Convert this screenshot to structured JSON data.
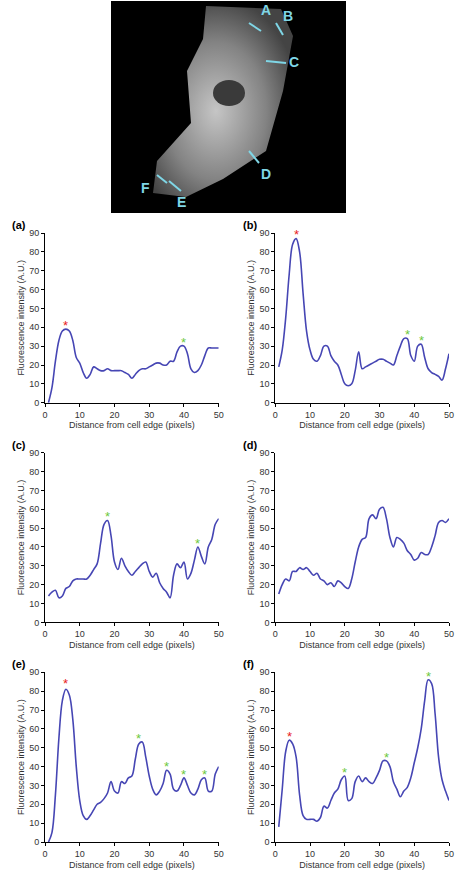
{
  "image": {
    "labels": [
      "A",
      "B",
      "C",
      "D",
      "E",
      "F"
    ]
  },
  "chart_data": [
    {
      "type": "line",
      "panel": "(a)",
      "xlabel": "Distance from cell edge (pixels)",
      "ylabel": "Fluorescence intensity (A.U.)",
      "x": [
        1,
        2,
        3,
        4,
        5,
        6,
        7,
        8,
        9,
        10,
        11,
        12,
        13,
        14,
        15,
        16,
        17,
        18,
        19,
        20,
        21,
        22,
        23,
        24,
        25,
        26,
        27,
        28,
        29,
        30,
        31,
        32,
        33,
        34,
        35,
        36,
        37,
        38,
        39,
        40,
        41,
        42,
        43,
        44,
        45,
        46,
        47,
        48,
        49,
        50
      ],
      "values": [
        0,
        8,
        22,
        33,
        38,
        39,
        38,
        33,
        24,
        21,
        16,
        13,
        15,
        19,
        18,
        17,
        17,
        18,
        17,
        17,
        17,
        17,
        16,
        15,
        13,
        15,
        17,
        18,
        18,
        19,
        20,
        21,
        21,
        20,
        20,
        22,
        22,
        27,
        30,
        30,
        26,
        18,
        16,
        17,
        20,
        25,
        29,
        29,
        29,
        29
      ],
      "color": "#4646b4",
      "line_style": "solid",
      "grid": false,
      "xlim": [
        0,
        50
      ],
      "xticks": [
        0,
        10,
        20,
        30,
        40,
        50
      ],
      "ylim": [
        0,
        90
      ],
      "yticks": [
        0,
        10,
        20,
        30,
        40,
        50,
        60,
        70,
        80,
        90
      ],
      "annotations": [
        {
          "text": "*",
          "x": 6,
          "y": 41,
          "color": "#e8201c"
        },
        {
          "text": "*",
          "x": 40,
          "y": 32,
          "color": "#6cc83c"
        }
      ]
    },
    {
      "type": "line",
      "panel": "(b)",
      "xlabel": "Distance from cell edge (pixels)",
      "ylabel": "Fluorescence intensity (A.U.)",
      "x": [
        1,
        2,
        3,
        4,
        5,
        6,
        7,
        8,
        9,
        10,
        11,
        12,
        13,
        14,
        15,
        16,
        17,
        18,
        19,
        20,
        21,
        22,
        23,
        24,
        25,
        26,
        27,
        28,
        29,
        30,
        31,
        32,
        33,
        34,
        35,
        36,
        37,
        38,
        39,
        40,
        41,
        42,
        43,
        44,
        45,
        46,
        47,
        48,
        49,
        50
      ],
      "values": [
        19,
        28,
        45,
        68,
        84,
        87,
        80,
        58,
        38,
        28,
        23,
        22,
        25,
        30,
        30,
        25,
        22,
        20,
        15,
        10,
        9,
        10,
        17,
        27,
        18,
        19,
        20,
        21,
        22,
        23,
        23,
        22,
        21,
        20,
        25,
        30,
        34,
        34,
        25,
        22,
        30,
        31,
        24,
        18,
        16,
        15,
        14,
        12,
        18,
        26
      ],
      "color": "#4646b4",
      "line_style": "solid",
      "grid": false,
      "xlim": [
        0,
        50
      ],
      "xticks": [
        0,
        10,
        20,
        30,
        40,
        50
      ],
      "ylim": [
        0,
        90
      ],
      "yticks": [
        0,
        10,
        20,
        30,
        40,
        50,
        60,
        70,
        80,
        90
      ],
      "annotations": [
        {
          "text": "*",
          "x": 6,
          "y": 89,
          "color": "#e8201c"
        },
        {
          "text": "*",
          "x": 38,
          "y": 36,
          "color": "#6cc83c"
        },
        {
          "text": "*",
          "x": 42,
          "y": 33,
          "color": "#6cc83c"
        }
      ]
    },
    {
      "type": "line",
      "panel": "(c)",
      "xlabel": "Distance from cell edge (pixels)",
      "ylabel": "Fluorescence intensity (A.U.)",
      "x": [
        1,
        2,
        3,
        4,
        5,
        6,
        7,
        8,
        9,
        10,
        11,
        12,
        13,
        14,
        15,
        16,
        17,
        18,
        19,
        20,
        21,
        22,
        23,
        24,
        25,
        26,
        27,
        28,
        29,
        30,
        31,
        32,
        33,
        34,
        35,
        36,
        37,
        38,
        39,
        40,
        41,
        42,
        43,
        44,
        45,
        46,
        47,
        48,
        49,
        50
      ],
      "values": [
        14,
        16,
        17,
        13,
        14,
        18,
        19,
        22,
        23,
        23,
        23,
        23,
        25,
        28,
        31,
        42,
        52,
        54,
        46,
        32,
        28,
        34,
        30,
        27,
        25,
        27,
        29,
        31,
        32,
        27,
        24,
        26,
        21,
        18,
        16,
        13,
        25,
        31,
        29,
        32,
        23,
        26,
        33,
        40,
        35,
        31,
        40,
        44,
        52,
        55
      ],
      "color": "#4646b4",
      "line_style": "solid",
      "grid": false,
      "xlim": [
        0,
        50
      ],
      "xticks": [
        0,
        10,
        20,
        30,
        40,
        50
      ],
      "ylim": [
        0,
        90
      ],
      "yticks": [
        0,
        10,
        20,
        30,
        40,
        50,
        60,
        70,
        80,
        90
      ],
      "annotations": [
        {
          "text": "*",
          "x": 18,
          "y": 56,
          "color": "#6cc83c"
        },
        {
          "text": "*",
          "x": 44,
          "y": 42,
          "color": "#6cc83c"
        }
      ]
    },
    {
      "type": "line",
      "panel": "(d)",
      "xlabel": "Distance from cell edge (pixels)",
      "ylabel": "Fluorescence intensity (A.U.)",
      "x": [
        1,
        2,
        3,
        4,
        5,
        6,
        7,
        8,
        9,
        10,
        11,
        12,
        13,
        14,
        15,
        16,
        17,
        18,
        19,
        20,
        21,
        22,
        23,
        24,
        25,
        26,
        27,
        28,
        29,
        30,
        31,
        32,
        33,
        34,
        35,
        36,
        37,
        38,
        39,
        40,
        41,
        42,
        43,
        44,
        45,
        46,
        47,
        48,
        49,
        50
      ],
      "values": [
        15,
        20,
        23,
        22,
        27,
        27,
        29,
        28,
        29,
        27,
        25,
        26,
        23,
        22,
        20,
        21,
        19,
        22,
        21,
        19,
        18,
        23,
        32,
        40,
        44,
        45,
        55,
        57,
        55,
        60,
        61,
        55,
        45,
        40,
        45,
        44,
        42,
        38,
        36,
        33,
        34,
        37,
        36,
        36,
        40,
        46,
        53,
        54,
        53,
        55
      ],
      "color": "#4646b4",
      "line_style": "solid",
      "grid": false,
      "xlim": [
        0,
        50
      ],
      "xticks": [
        0,
        10,
        20,
        30,
        40,
        50
      ],
      "ylim": [
        0,
        90
      ],
      "yticks": [
        0,
        10,
        20,
        30,
        40,
        50,
        60,
        70,
        80,
        90
      ],
      "annotations": []
    },
    {
      "type": "line",
      "panel": "(e)",
      "xlabel": "Distance from cell edge (pixels)",
      "ylabel": "Fluorescence intensity (A.U.)",
      "x": [
        1,
        2,
        3,
        4,
        5,
        6,
        7,
        8,
        9,
        10,
        11,
        12,
        13,
        14,
        15,
        16,
        17,
        18,
        19,
        20,
        21,
        22,
        23,
        24,
        25,
        26,
        27,
        28,
        29,
        30,
        31,
        32,
        33,
        34,
        35,
        36,
        37,
        38,
        39,
        40,
        41,
        42,
        43,
        44,
        45,
        46,
        47,
        48,
        49,
        50
      ],
      "values": [
        0,
        5,
        25,
        55,
        75,
        81,
        78,
        65,
        40,
        22,
        14,
        12,
        14,
        17,
        20,
        21,
        23,
        26,
        32,
        27,
        26,
        32,
        31,
        34,
        35,
        44,
        52,
        53,
        45,
        35,
        28,
        25,
        27,
        31,
        38,
        36,
        28,
        27,
        30,
        34,
        30,
        26,
        25,
        28,
        33,
        34,
        27,
        27,
        36,
        40
      ],
      "color": "#4646b4",
      "line_style": "solid",
      "grid": false,
      "xlim": [
        0,
        50
      ],
      "xticks": [
        0,
        10,
        20,
        30,
        40,
        50
      ],
      "ylim": [
        0,
        90
      ],
      "yticks": [
        0,
        10,
        20,
        30,
        40,
        50,
        60,
        70,
        80,
        90
      ],
      "annotations": [
        {
          "text": "*",
          "x": 6,
          "y": 84,
          "color": "#e8201c"
        },
        {
          "text": "*",
          "x": 27,
          "y": 55,
          "color": "#6cc83c"
        },
        {
          "text": "*",
          "x": 35,
          "y": 40,
          "color": "#6cc83c"
        },
        {
          "text": "*",
          "x": 40,
          "y": 36,
          "color": "#6cc83c"
        },
        {
          "text": "*",
          "x": 46,
          "y": 36,
          "color": "#6cc83c"
        }
      ]
    },
    {
      "type": "line",
      "panel": "(f)",
      "xlabel": "Distance from cell edge (pixels)",
      "ylabel": "Fluorescence intensity (A.U.)",
      "x": [
        1,
        2,
        3,
        4,
        5,
        6,
        7,
        8,
        9,
        10,
        11,
        12,
        13,
        14,
        15,
        16,
        17,
        18,
        19,
        20,
        21,
        22,
        23,
        24,
        25,
        26,
        27,
        28,
        29,
        30,
        31,
        32,
        33,
        34,
        35,
        36,
        37,
        38,
        39,
        40,
        41,
        42,
        43,
        44,
        45,
        46,
        47,
        48,
        49,
        50
      ],
      "values": [
        8,
        28,
        48,
        54,
        52,
        45,
        25,
        14,
        12,
        12,
        12,
        11,
        13,
        19,
        18,
        22,
        26,
        28,
        33,
        35,
        22,
        23,
        32,
        35,
        32,
        34,
        32,
        31,
        34,
        38,
        43,
        43,
        40,
        32,
        28,
        24,
        27,
        29,
        34,
        42,
        50,
        60,
        75,
        86,
        84,
        68,
        45,
        33,
        27,
        22
      ],
      "color": "#4646b4",
      "line_style": "solid",
      "grid": false,
      "xlim": [
        0,
        50
      ],
      "xticks": [
        0,
        10,
        20,
        30,
        40,
        50
      ],
      "ylim": [
        0,
        90
      ],
      "yticks": [
        0,
        10,
        20,
        30,
        40,
        50,
        60,
        70,
        80,
        90
      ],
      "annotations": [
        {
          "text": "*",
          "x": 4,
          "y": 56,
          "color": "#e8201c"
        },
        {
          "text": "*",
          "x": 20,
          "y": 37,
          "color": "#6cc83c"
        },
        {
          "text": "*",
          "x": 32,
          "y": 45,
          "color": "#6cc83c"
        },
        {
          "text": "*",
          "x": 44,
          "y": 88,
          "color": "#6cc83c"
        }
      ]
    }
  ]
}
